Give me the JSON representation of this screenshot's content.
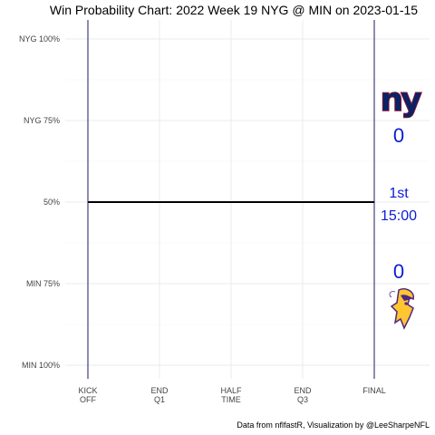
{
  "chart_data": {
    "type": "line",
    "title": "Win Probability Chart: 2022 Week 19 NYG @ MIN on 2023-01-15",
    "xlabel": "",
    "ylabel": "",
    "x_domain": [
      0,
      4
    ],
    "y_domain": [
      0,
      1
    ],
    "x_ticks": [
      {
        "value": 0,
        "label": [
          "KICK",
          "OFF"
        ]
      },
      {
        "value": 1,
        "label": [
          "END",
          "Q1"
        ]
      },
      {
        "value": 2,
        "label": [
          "HALF",
          "TIME"
        ]
      },
      {
        "value": 3,
        "label": [
          "END",
          "Q3"
        ]
      },
      {
        "value": 4,
        "label": [
          "FINAL"
        ]
      }
    ],
    "y_ticks": [
      {
        "value": 1.0,
        "label": "NYG 100%"
      },
      {
        "value": 0.75,
        "label": "NYG 75%"
      },
      {
        "value": 0.5,
        "label": "50%"
      },
      {
        "value": 0.25,
        "label": "MIN 75%"
      },
      {
        "value": 0.0,
        "label": "MIN 100%"
      }
    ],
    "series": [
      {
        "x": [
          0,
          4
        ],
        "values": [
          0.5,
          0.5
        ]
      }
    ],
    "grid": true,
    "legend": "none"
  },
  "scoreboard": {
    "away_team": "NYG",
    "away_score": "0",
    "quarter": "1st",
    "clock": "15:00",
    "home_score": "0",
    "home_team": "MIN"
  },
  "caption": "Data from nflfastR, Visualization by @LeeSharpeNFL",
  "colors": {
    "line": "#000000",
    "vertical_rule": "#1a1a66",
    "score_text": "#0b1cd6",
    "nyg_blue": "#0b2265",
    "nyg_red": "#a71930",
    "min_purple": "#4f2683",
    "min_gold": "#ffc62f"
  }
}
